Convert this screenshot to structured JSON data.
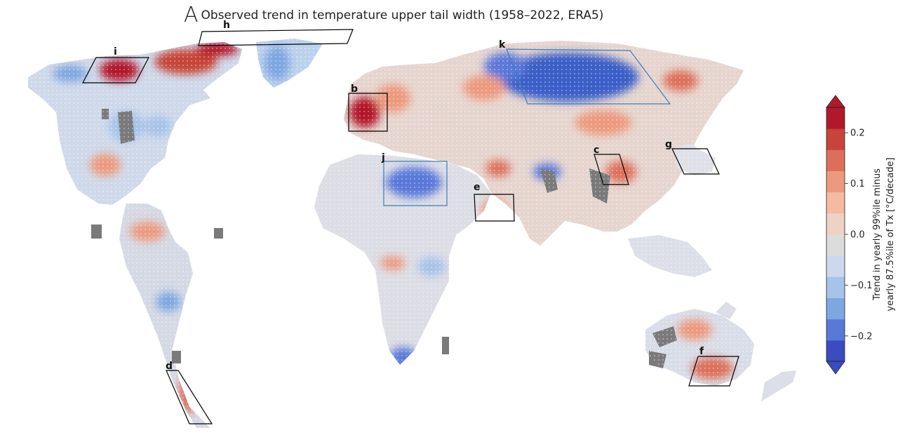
{
  "figure": {
    "panel_letter": "A",
    "title": "Observed trend in temperature upper tail width (1958–2022, ERA5)"
  },
  "colors": {
    "strong_warm": "#b2182b",
    "warm": "#e4826a",
    "light_warm": "#f4c7b0",
    "neutral": "#dadada",
    "light_cool": "#bcd1ec",
    "cool": "#7ea6e0",
    "strong_cool": "#3b5fc7",
    "missing": "#7a7a7a"
  },
  "regions": [
    {
      "label": "b",
      "color": "#000000"
    },
    {
      "label": "c",
      "color": "#000000"
    },
    {
      "label": "d",
      "color": "#000000"
    },
    {
      "label": "e",
      "color": "#000000"
    },
    {
      "label": "f",
      "color": "#000000"
    },
    {
      "label": "g",
      "color": "#000000"
    },
    {
      "label": "h",
      "color": "#000000"
    },
    {
      "label": "i",
      "color": "#000000"
    },
    {
      "label": "j",
      "color": "#3b7fb8"
    },
    {
      "label": "k",
      "color": "#3b7fb8"
    }
  ],
  "colorbar": {
    "min": -0.25,
    "max": 0.25,
    "ticks": [
      {
        "value": 0.2,
        "label": "0.2"
      },
      {
        "value": 0.1,
        "label": "0.1"
      },
      {
        "value": 0.0,
        "label": "0.0"
      },
      {
        "value": -0.1,
        "label": "−0.1"
      },
      {
        "value": -0.2,
        "label": "−0.2"
      }
    ],
    "label_line1": "Trend in yearly 99%ile minus",
    "label_line2": "yearly 87.5%ile of Tx [°C/decade]",
    "steps": [
      "#3b4cc0",
      "#5a78d9",
      "#7ea6e0",
      "#a6c3ea",
      "#cbd8ee",
      "#dcdcdc",
      "#ecd3c6",
      "#f4bba2",
      "#ec9a7e",
      "#dd6f5a",
      "#c64439",
      "#b2182b"
    ]
  }
}
